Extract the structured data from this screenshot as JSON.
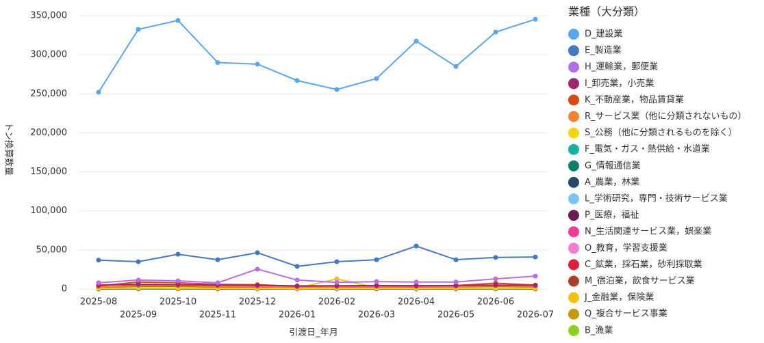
{
  "chart_data": {
    "type": "line",
    "legend_title": "業種（大分類）",
    "x_label": "引渡日_年月",
    "y_label": "トン換算数量",
    "categories": [
      "2025-08",
      "2025-09",
      "2025-10",
      "2025-11",
      "2025-12",
      "2026-01",
      "2026-02",
      "2026-03",
      "2026-04",
      "2026-05",
      "2026-06",
      "2026-07"
    ],
    "ylim": [
      0,
      350000
    ],
    "yticks": [
      0,
      {
        "value": 50000,
        "label": "50,000"
      },
      {
        "value": 100000,
        "label": "100,000"
      },
      {
        "value": 150000,
        "label": "150,000"
      },
      {
        "value": 200000,
        "label": "200,000"
      },
      {
        "value": 250000,
        "label": "250,000"
      },
      {
        "value": 300000,
        "label": "300,000"
      },
      {
        "value": 350000,
        "label": "350,000"
      }
    ],
    "grid": true,
    "series": [
      {
        "name": "D_建設業",
        "color": "#5aa5ef",
        "values": [
          252000,
          332500,
          344000,
          290000,
          288000,
          267000,
          255500,
          269500,
          317500,
          285000,
          329000,
          345500
        ]
      },
      {
        "name": "E_製造業",
        "color": "#4677c3",
        "values": [
          37000,
          35000,
          44500,
          37500,
          46500,
          29000,
          35000,
          37500,
          55000,
          37500,
          40500,
          41000
        ]
      },
      {
        "name": "H_運輸業，郵便業",
        "color": "#b36fe3",
        "values": [
          8000,
          11500,
          10500,
          8000,
          25500,
          11500,
          8500,
          9500,
          9000,
          9000,
          13000,
          16500
        ]
      },
      {
        "name": "I_卸売業，小売業",
        "color": "#a0256b",
        "values": [
          5000,
          6000,
          5500,
          5000,
          4800,
          4000,
          4200,
          4500,
          4300,
          4500,
          5000,
          4800
        ]
      },
      {
        "name": "K_不動産業，物品賃貸業",
        "color": "#d9480f",
        "values": [
          4000,
          9000,
          8000,
          6000,
          5500,
          3500,
          4000,
          4200,
          4000,
          4500,
          7500,
          5000
        ]
      },
      {
        "name": "R_サービス業（他に分類されないもの）",
        "color": "#f7822d",
        "values": [
          3000,
          4000,
          4000,
          3500,
          3000,
          2500,
          2800,
          3000,
          3000,
          3200,
          4000,
          3500
        ]
      },
      {
        "name": "S_公務（他に分類されるものを除く）",
        "color": "#f6d50b",
        "values": [
          1000,
          1200,
          1100,
          1000,
          900,
          800,
          900,
          1000,
          900,
          1000,
          1100,
          1000
        ]
      },
      {
        "name": "F_電気・ガス・熱供給・水道業",
        "color": "#14b39b",
        "values": [
          800,
          900,
          900,
          800,
          700,
          600,
          700,
          800,
          700,
          800,
          900,
          800
        ]
      },
      {
        "name": "G_情報通信業",
        "color": "#0c7f6c",
        "values": [
          600,
          700,
          700,
          600,
          600,
          500,
          500,
          600,
          600,
          600,
          700,
          600
        ]
      },
      {
        "name": "A_農業，林業",
        "color": "#264a66",
        "values": [
          500,
          600,
          600,
          500,
          500,
          400,
          400,
          500,
          500,
          500,
          600,
          500
        ]
      },
      {
        "name": "L_学術研究，専門・技術サービス業",
        "color": "#7cc6f7",
        "values": [
          400,
          500,
          500,
          400,
          400,
          300,
          300,
          400,
          400,
          400,
          500,
          400
        ]
      },
      {
        "name": "P_医療，福祉",
        "color": "#6b1a4f",
        "values": [
          300,
          400,
          400,
          300,
          300,
          300,
          300,
          300,
          300,
          300,
          400,
          300
        ]
      },
      {
        "name": "N_生活関連サービス業，娯楽業",
        "color": "#f03c95",
        "values": [
          300,
          300,
          300,
          300,
          300,
          200,
          200,
          300,
          300,
          300,
          300,
          300
        ]
      },
      {
        "name": "O_教育，学習支援業",
        "color": "#f47cd3",
        "values": [
          200,
          300,
          300,
          200,
          200,
          200,
          200,
          200,
          200,
          200,
          300,
          200
        ]
      },
      {
        "name": "C_鉱業，採石業，砂利採取業",
        "color": "#e0203a",
        "values": [
          2000,
          5000,
          4000,
          3000,
          2500,
          2000,
          2500,
          2500,
          2500,
          3000,
          5000,
          3500
        ]
      },
      {
        "name": "M_宿泊業，飲食サービス業",
        "color": "#a8402a",
        "values": [
          2500,
          3500,
          3500,
          3000,
          3000,
          2500,
          2500,
          3000,
          3000,
          3000,
          3500,
          3000
        ]
      },
      {
        "name": "J_金融業，保険業",
        "color": "#f0c30c",
        "values": [
          1500,
          1500,
          1500,
          1500,
          1500,
          1000,
          13000,
          1500,
          1500,
          1500,
          1500,
          1500
        ]
      },
      {
        "name": "Q_複合サービス事業",
        "color": "#c49a0b",
        "values": [
          200,
          200,
          200,
          200,
          200,
          200,
          200,
          200,
          200,
          200,
          200,
          200
        ]
      },
      {
        "name": "B_漁業",
        "color": "#8ccf1f",
        "values": [
          100,
          100,
          100,
          100,
          100,
          100,
          100,
          100,
          100,
          100,
          100,
          100
        ]
      }
    ]
  }
}
